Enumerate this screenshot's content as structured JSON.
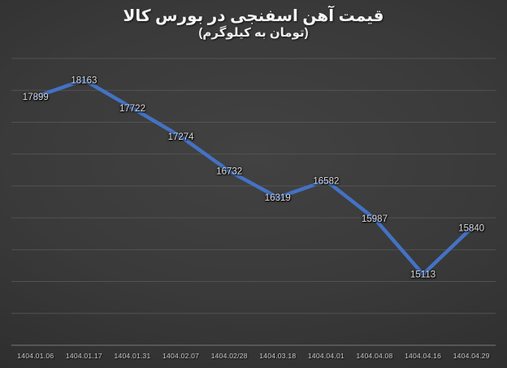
{
  "chart_data": {
    "type": "line",
    "title": "قیمت آهن اسفنجی در بورس کالا",
    "subtitle": "(تومان به کیلوگرم)",
    "categories": [
      "1404.01.06",
      "1404.01.17",
      "1404.01.31",
      "1404.02.07",
      "1404.02/28",
      "1404.03.18",
      "1404.04.01",
      "1404.04.08",
      "1404.04.16",
      "1404.04.29"
    ],
    "values": [
      17899,
      18163,
      17722,
      17274,
      16732,
      16319,
      16582,
      15987,
      15113,
      15840
    ],
    "series_name": "قیمت آهن اسفنجی",
    "ylim": [
      14000,
      18500
    ],
    "y_step": 500,
    "grid": true,
    "legend": "none",
    "data_labels": true,
    "line_color": "#4472C4",
    "data_label_color": "#dcdcdc",
    "axis_label_color": "#c6c6c6"
  }
}
